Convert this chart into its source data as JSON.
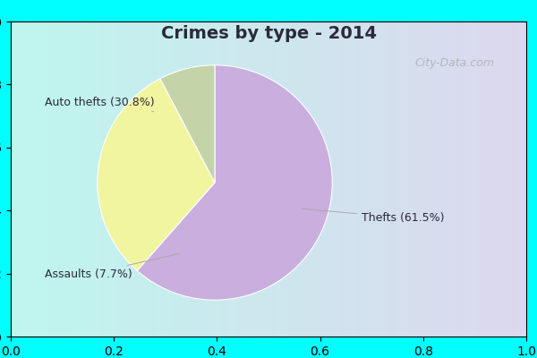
{
  "title": "Crimes by type - 2014",
  "slices": [
    {
      "label": "Thefts",
      "pct": 61.5,
      "color": "#c9aede"
    },
    {
      "label": "Auto thefts",
      "pct": 30.8,
      "color": "#f2f5a0"
    },
    {
      "label": "Assaults",
      "pct": 7.7,
      "color": "#c5d4a8"
    }
  ],
  "label_texts": [
    "Thefts (61.5%)",
    "Auto thefts (30.8%)",
    "Assaults (7.7%)"
  ],
  "border_color": "#00ffff",
  "bg_color": "#d8f5ec",
  "title_color": "#2a2a3a",
  "title_fontsize": 14,
  "label_fontsize": 9,
  "watermark": "City-Data.com"
}
